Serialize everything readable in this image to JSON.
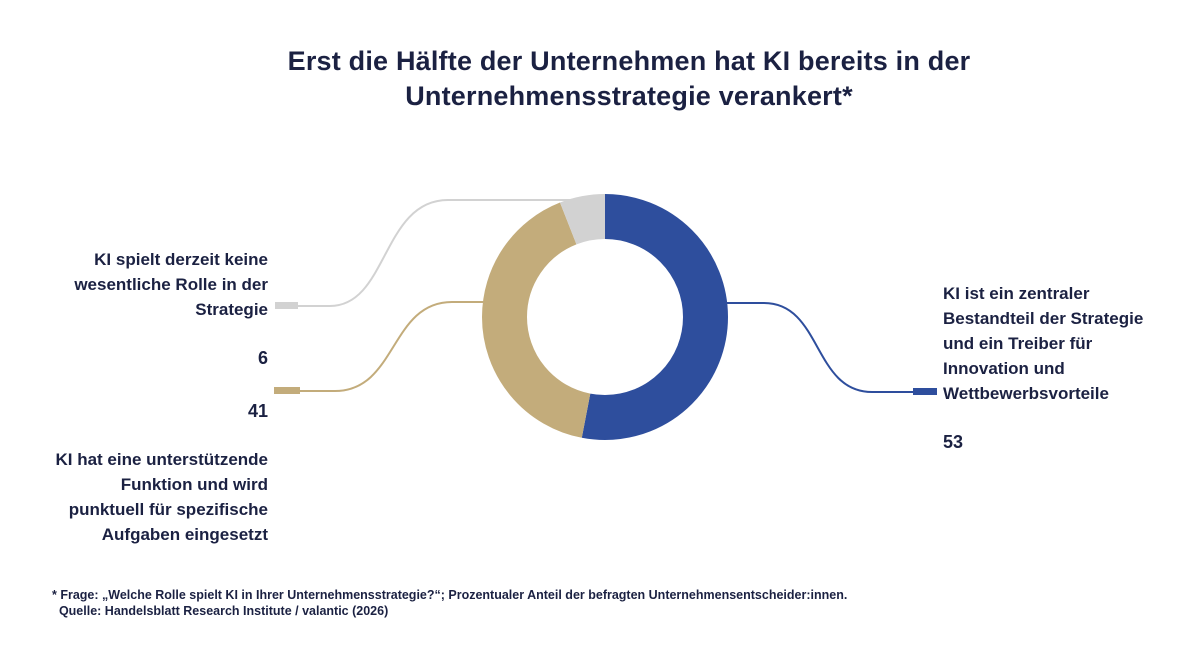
{
  "title": "Erst die Hälfte der Unternehmen hat KI bereits in der\nUnternehmensstrategie verankert*",
  "colors": {
    "text_navy": "#1b2142",
    "segment_blue": "#2e4e9d",
    "segment_tan": "#c3ac7b",
    "segment_gray": "#d2d2d2",
    "background": "#ffffff"
  },
  "chart_data": {
    "type": "pie",
    "donut": true,
    "title": "Erst die Hälfte der Unternehmen hat KI bereits in der Unternehmensstrategie verankert*",
    "start_angle_deg": 0,
    "direction": "clockwise",
    "unit": "percent",
    "segments": [
      {
        "id": "zentraler-bestandteil",
        "label": "KI ist ein zentraler Bestandteil der Strategie und ein Treiber für Innovation und Wettbewerbsvorteile",
        "value": 53,
        "color": "#2e4e9d"
      },
      {
        "id": "unterstuetzende-funktion",
        "label": "KI hat eine unterstützende Funktion und wird punktuell für spezifische Aufgaben eingesetzt",
        "value": 41,
        "color": "#c3ac7b"
      },
      {
        "id": "keine-wesentliche-rolle",
        "label": "KI spielt derzeit keine wesentliche Rolle in der Strategie",
        "value": 6,
        "color": "#d2d2d2"
      }
    ]
  },
  "annotations": {
    "left_top": {
      "text": "KI spielt derzeit keine\nwesentliche Rolle in der\nStrategie",
      "value": "6"
    },
    "left_bottom": {
      "value": "41",
      "text": "KI hat eine unterstützende\nFunktion und wird\npunktuell für spezifische\nAufgaben eingesetzt"
    },
    "right": {
      "text": "KI ist ein zentraler\nBestandteil der Strategie\nund ein Treiber für\nInnovation und\nWettbewerbsvorteile",
      "value": "53"
    }
  },
  "footnote": "* Frage: „Welche Rolle spielt KI in Ihrer Unternehmensstrategie?“; Prozentualer Anteil der befragten Unternehmensentscheider:innen.\n  Quelle: Handelsblatt Research Institute / valantic (2026)"
}
